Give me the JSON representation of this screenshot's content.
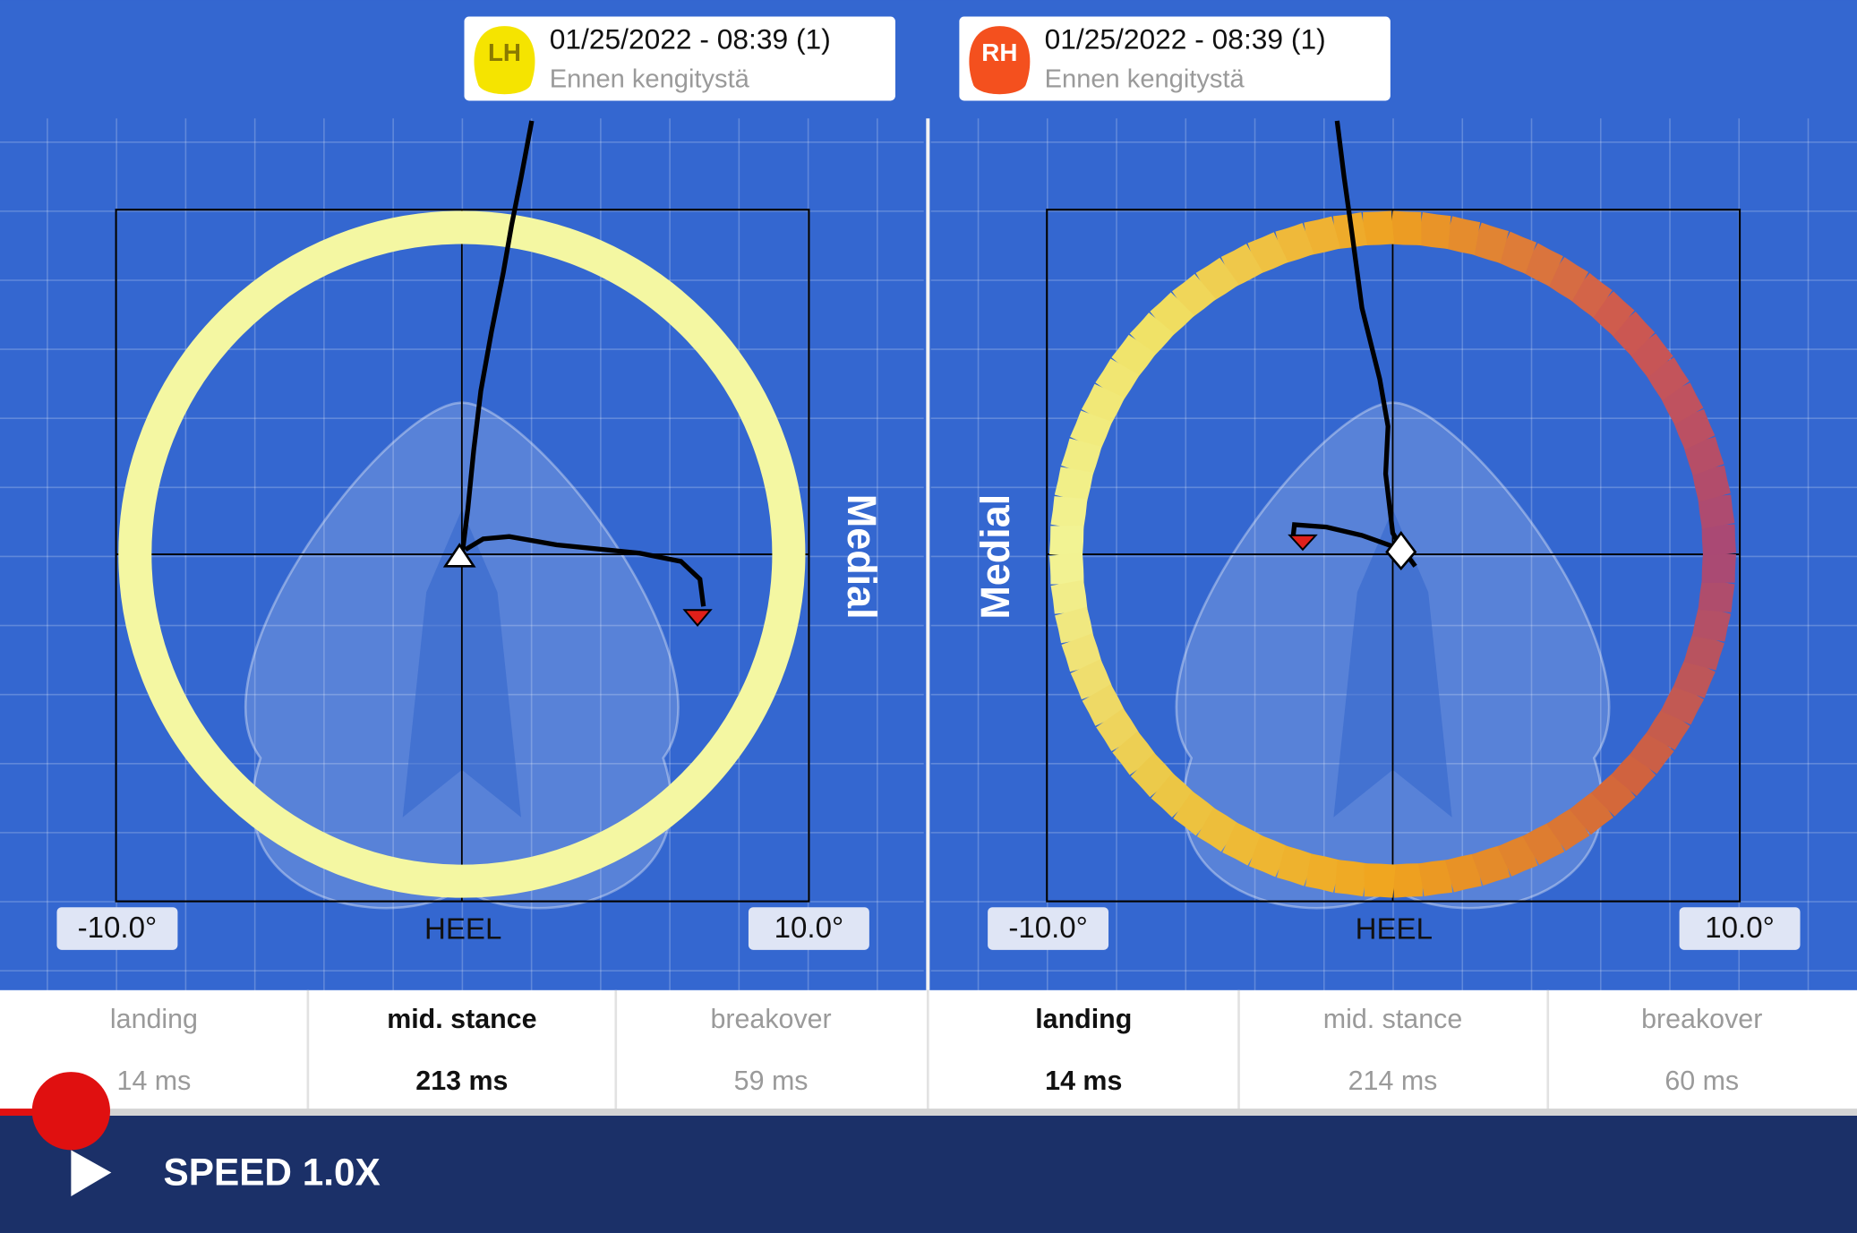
{
  "panels": [
    {
      "badge": "LH",
      "timestamp": "01/25/2022 - 08:39 (1)",
      "note": "Ennen kengitystä",
      "side_label": "Medial",
      "axis": {
        "min_label": "-10.0°",
        "center_label": "HEEL",
        "max_label": "10.0°"
      },
      "phases": [
        {
          "name": "landing",
          "duration": "14 ms"
        },
        {
          "name": "mid. stance",
          "duration": "213 ms"
        },
        {
          "name": "breakover",
          "duration": "59 ms"
        }
      ]
    },
    {
      "badge": "RH",
      "timestamp": "01/25/2022 - 08:39 (1)",
      "note": "Ennen kengitystä",
      "side_label": "Medial",
      "axis": {
        "min_label": "-10.0°",
        "center_label": "HEEL",
        "max_label": "10.0°"
      },
      "phases": [
        {
          "name": "landing",
          "duration": "14 ms"
        },
        {
          "name": "mid. stance",
          "duration": "214 ms"
        },
        {
          "name": "breakover",
          "duration": "60 ms"
        }
      ]
    }
  ],
  "player": {
    "speed": "SPEED 1.0X"
  }
}
